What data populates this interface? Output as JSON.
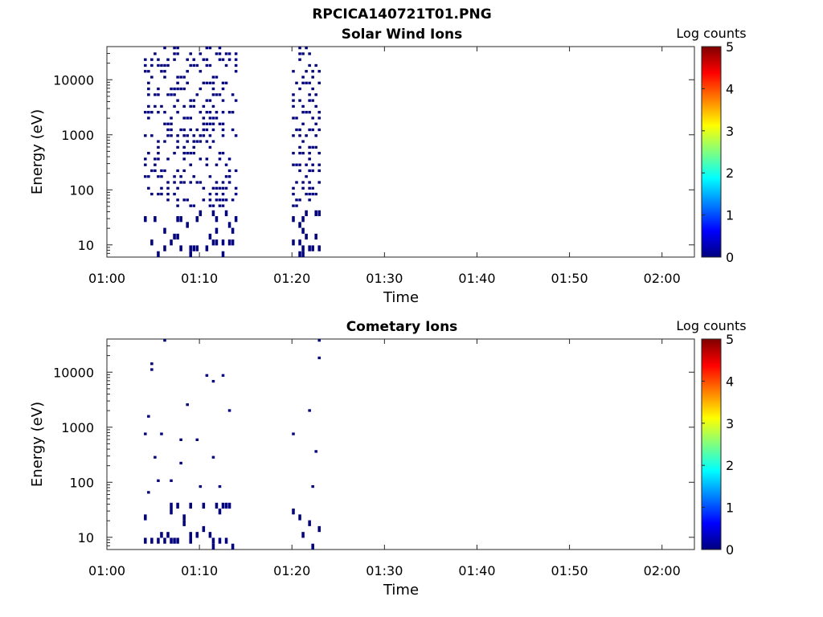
{
  "figure": {
    "title": "RPCICA140721T01.PNG"
  },
  "colorbar": {
    "label": "Log counts",
    "ticks": [
      0,
      1,
      2,
      3,
      4,
      5
    ],
    "stops": [
      "#00007f",
      "#0000ff",
      "#007fff",
      "#00ffff",
      "#7fff7f",
      "#ffff00",
      "#ff7f00",
      "#ff0000",
      "#7f0000"
    ]
  },
  "chart_data": [
    {
      "type": "heatmap",
      "title": "Solar Wind Ions",
      "xlabel": "Time",
      "ylabel": "Energy (eV)",
      "xticks": [
        "01:00",
        "01:10",
        "01:20",
        "01:30",
        "01:40",
        "01:50",
        "02:00"
      ],
      "xlim_minutes": [
        0,
        63.5
      ],
      "yticks": [
        10,
        100,
        1000,
        10000
      ],
      "ylim": [
        6,
        40000
      ],
      "yscale": "log",
      "clim": [
        0,
        5
      ],
      "activity_intervals": [
        [
          "01:04",
          "01:14"
        ],
        [
          "01:20",
          "01:23"
        ]
      ],
      "dominant_level": 0
    },
    {
      "type": "heatmap",
      "title": "Cometary Ions",
      "xlabel": "Time",
      "ylabel": "Energy (eV)",
      "xticks": [
        "01:00",
        "01:10",
        "01:20",
        "01:30",
        "01:40",
        "01:50",
        "02:00"
      ],
      "xlim_minutes": [
        0,
        63.5
      ],
      "yticks": [
        10,
        100,
        1000,
        10000
      ],
      "ylim": [
        6,
        40000
      ],
      "yscale": "log",
      "clim": [
        0,
        5
      ],
      "activity_intervals": [
        [
          "01:04",
          "01:14"
        ],
        [
          "01:20",
          "01:23"
        ]
      ],
      "dominant_level": 0
    }
  ]
}
